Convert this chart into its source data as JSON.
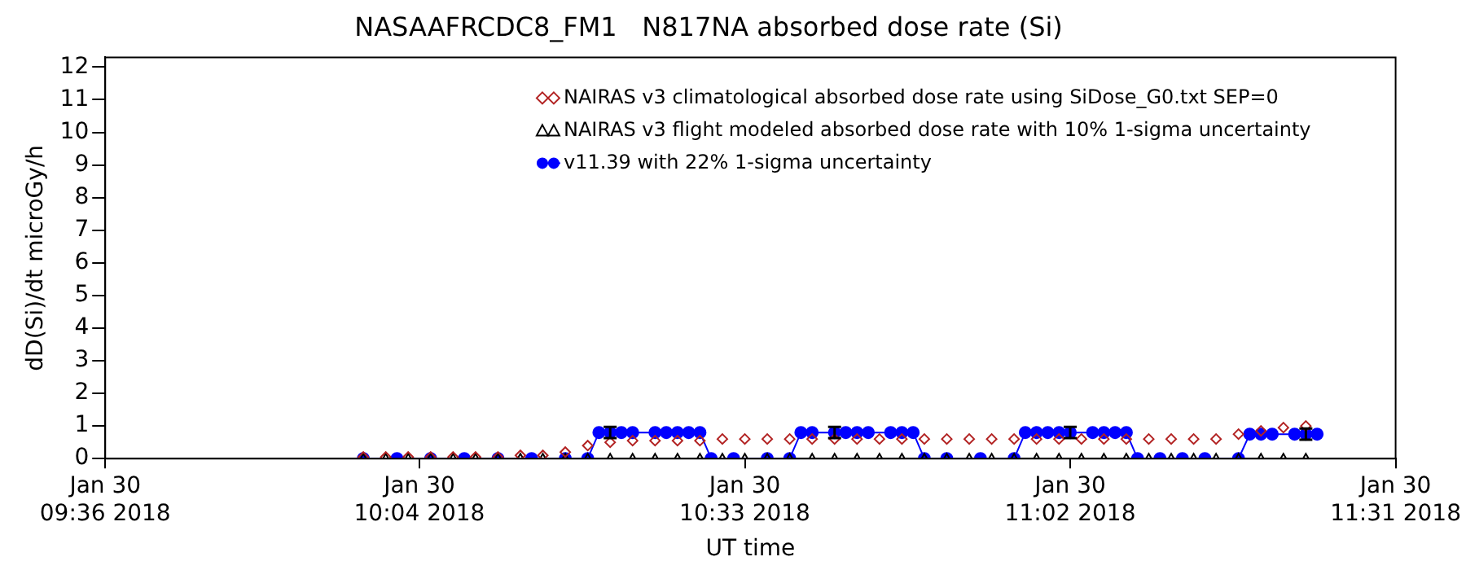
{
  "chart_data": {
    "type": "line",
    "title": "NASAAFRCDC8_FM1   N817NA absorbed dose rate (Si)",
    "xlabel": "UT time",
    "ylabel": "dD(Si)/dt microGy/h",
    "xlim": [
      "2018-01-30T09:36",
      "2018-01-30T11:31"
    ],
    "xticks": [
      {
        "value": "2018-01-30T09:36",
        "label": "Jan 30\n09:36 2018"
      },
      {
        "value": "2018-01-30T10:04",
        "label": "Jan 30\n10:04 2018"
      },
      {
        "value": "2018-01-30T10:33",
        "label": "Jan 30\n10:33 2018"
      },
      {
        "value": "2018-01-30T11:02",
        "label": "Jan 30\n11:02 2018"
      },
      {
        "value": "2018-01-30T11:31",
        "label": "Jan 30\n11:31 2018"
      }
    ],
    "ylim": [
      0,
      12.3
    ],
    "yticks": [
      0,
      1,
      2,
      3,
      4,
      5,
      6,
      7,
      8,
      9,
      10,
      11,
      12
    ],
    "grid": false,
    "legend": "top right",
    "series": [
      {
        "name": "NAIRAS v3 climatological absorbed dose rate using SiDose_G0.txt SEP=0",
        "type": "scatter",
        "marker": "diamond",
        "color": "#b22222",
        "x": [
          "2018-01-30T09:59",
          "2018-01-30T10:01",
          "2018-01-30T10:03",
          "2018-01-30T10:05",
          "2018-01-30T10:07",
          "2018-01-30T10:09",
          "2018-01-30T10:11",
          "2018-01-30T10:13",
          "2018-01-30T10:15",
          "2018-01-30T10:17",
          "2018-01-30T10:19",
          "2018-01-30T10:21",
          "2018-01-30T10:23",
          "2018-01-30T10:25",
          "2018-01-30T10:27",
          "2018-01-30T10:29",
          "2018-01-30T10:31",
          "2018-01-30T10:33",
          "2018-01-30T10:35",
          "2018-01-30T10:37",
          "2018-01-30T10:39",
          "2018-01-30T10:41",
          "2018-01-30T10:43",
          "2018-01-30T10:45",
          "2018-01-30T10:47",
          "2018-01-30T10:49",
          "2018-01-30T10:51",
          "2018-01-30T10:53",
          "2018-01-30T10:55",
          "2018-01-30T10:57",
          "2018-01-30T10:59",
          "2018-01-30T11:01",
          "2018-01-30T11:03",
          "2018-01-30T11:05",
          "2018-01-30T11:07",
          "2018-01-30T11:09",
          "2018-01-30T11:11",
          "2018-01-30T11:13",
          "2018-01-30T11:15",
          "2018-01-30T11:17",
          "2018-01-30T11:19",
          "2018-01-30T11:21",
          "2018-01-30T11:23"
        ],
        "values": [
          0.05,
          0.05,
          0.05,
          0.05,
          0.05,
          0.05,
          0.05,
          0.1,
          0.1,
          0.2,
          0.4,
          0.5,
          0.55,
          0.55,
          0.55,
          0.55,
          0.6,
          0.6,
          0.6,
          0.6,
          0.6,
          0.6,
          0.6,
          0.6,
          0.6,
          0.6,
          0.6,
          0.6,
          0.6,
          0.6,
          0.6,
          0.6,
          0.6,
          0.6,
          0.6,
          0.6,
          0.6,
          0.6,
          0.6,
          0.75,
          0.85,
          0.95,
          1
        ]
      },
      {
        "name": "NAIRAS v3 flight modeled absorbed dose rate with 10% 1-sigma uncertainty",
        "type": "scatter",
        "marker": "triangle",
        "color": "#000000",
        "x": [
          "2018-01-30T09:59",
          "2018-01-30T10:01",
          "2018-01-30T10:03",
          "2018-01-30T10:05",
          "2018-01-30T10:07",
          "2018-01-30T10:09",
          "2018-01-30T10:11",
          "2018-01-30T10:13",
          "2018-01-30T10:15",
          "2018-01-30T10:17",
          "2018-01-30T10:19",
          "2018-01-30T10:21",
          "2018-01-30T10:23",
          "2018-01-30T10:25",
          "2018-01-30T10:27",
          "2018-01-30T10:29",
          "2018-01-30T10:31",
          "2018-01-30T10:33",
          "2018-01-30T10:35",
          "2018-01-30T10:37",
          "2018-01-30T10:39",
          "2018-01-30T10:41",
          "2018-01-30T10:43",
          "2018-01-30T10:45",
          "2018-01-30T10:47",
          "2018-01-30T10:49",
          "2018-01-30T10:51",
          "2018-01-30T10:53",
          "2018-01-30T10:55",
          "2018-01-30T10:57",
          "2018-01-30T10:59",
          "2018-01-30T11:01",
          "2018-01-30T11:03",
          "2018-01-30T11:05",
          "2018-01-30T11:07",
          "2018-01-30T11:09",
          "2018-01-30T11:11",
          "2018-01-30T11:13",
          "2018-01-30T11:15",
          "2018-01-30T11:17",
          "2018-01-30T11:19",
          "2018-01-30T11:21",
          "2018-01-30T11:23"
        ],
        "values": [
          0,
          0,
          0,
          0,
          0,
          0,
          0,
          0,
          0,
          0,
          0,
          0,
          0,
          0,
          0,
          0,
          0,
          0,
          0,
          0,
          0,
          0,
          0,
          0,
          0,
          0,
          0,
          0,
          0,
          0,
          0,
          0,
          0,
          0,
          0,
          0,
          0,
          0,
          0,
          0,
          0,
          0,
          0
        ]
      },
      {
        "name": "v11.39 with 22% 1-sigma uncertainty",
        "type": "line",
        "marker": "circle",
        "color": "#0000ff",
        "x": [
          "2018-01-30T09:59",
          "2018-01-30T10:02",
          "2018-01-30T10:05",
          "2018-01-30T10:08",
          "2018-01-30T10:11",
          "2018-01-30T10:14",
          "2018-01-30T10:17",
          "2018-01-30T10:19",
          "2018-01-30T10:20",
          "2018-01-30T10:21",
          "2018-01-30T10:22",
          "2018-01-30T10:23",
          "2018-01-30T10:25",
          "2018-01-30T10:26",
          "2018-01-30T10:27",
          "2018-01-30T10:28",
          "2018-01-30T10:29",
          "2018-01-30T10:30",
          "2018-01-30T10:32",
          "2018-01-30T10:35",
          "2018-01-30T10:37",
          "2018-01-30T10:38",
          "2018-01-30T10:39",
          "2018-01-30T10:41",
          "2018-01-30T10:42",
          "2018-01-30T10:43",
          "2018-01-30T10:44",
          "2018-01-30T10:46",
          "2018-01-30T10:47",
          "2018-01-30T10:48",
          "2018-01-30T10:49",
          "2018-01-30T10:51",
          "2018-01-30T10:54",
          "2018-01-30T10:57",
          "2018-01-30T10:58",
          "2018-01-30T10:59",
          "2018-01-30T11:00",
          "2018-01-30T11:01",
          "2018-01-30T11:02",
          "2018-01-30T11:04",
          "2018-01-30T11:05",
          "2018-01-30T11:06",
          "2018-01-30T11:07",
          "2018-01-30T11:08",
          "2018-01-30T11:10",
          "2018-01-30T11:12",
          "2018-01-30T11:14",
          "2018-01-30T11:17",
          "2018-01-30T11:18",
          "2018-01-30T11:19",
          "2018-01-30T11:20",
          "2018-01-30T11:22",
          "2018-01-30T11:23",
          "2018-01-30T11:24"
        ],
        "values": [
          0,
          0,
          0,
          0,
          0,
          0,
          0,
          0,
          0.8,
          0.8,
          0.8,
          0.8,
          0.8,
          0.8,
          0.8,
          0.8,
          0.8,
          0,
          0,
          0,
          0,
          0.8,
          0.8,
          0.8,
          0.8,
          0.8,
          0.8,
          0.8,
          0.8,
          0.8,
          0,
          0,
          0,
          0,
          0.8,
          0.8,
          0.8,
          0.8,
          0.8,
          0.8,
          0.8,
          0.8,
          0.8,
          0,
          0,
          0,
          0,
          0,
          0.75,
          0.75,
          0.75,
          0.75,
          0.75,
          0.75
        ],
        "errors": [
          null,
          null,
          null,
          null,
          null,
          null,
          null,
          null,
          null,
          0.17,
          null,
          null,
          null,
          null,
          null,
          null,
          null,
          null,
          null,
          null,
          null,
          null,
          null,
          0.17,
          null,
          null,
          null,
          null,
          null,
          null,
          null,
          null,
          null,
          null,
          null,
          null,
          null,
          null,
          0.17,
          null,
          null,
          null,
          null,
          null,
          null,
          null,
          null,
          null,
          null,
          null,
          null,
          null,
          0.17,
          null
        ]
      }
    ]
  }
}
